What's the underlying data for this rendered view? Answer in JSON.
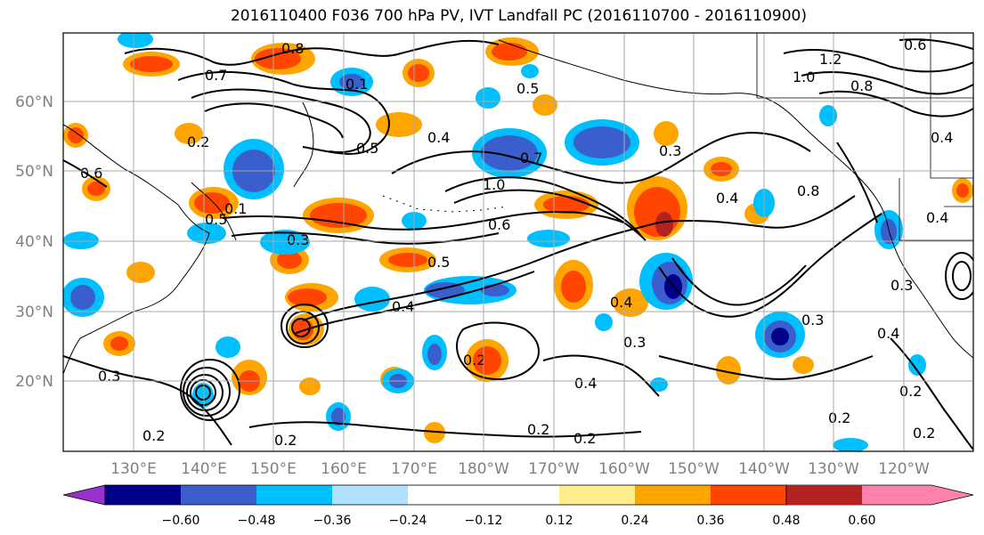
{
  "title": "2016110400 F036 700 hPa PV, IVT Landfall PC (2016110700 - 2016110900)",
  "map": {
    "projection": "equirectangular",
    "lon_range": [
      120,
      245
    ],
    "lat_range": [
      10,
      70
    ],
    "lat_ticks": [
      "20°N",
      "30°N",
      "40°N",
      "50°N",
      "60°N"
    ],
    "lon_ticks": [
      "130°E",
      "140°E",
      "150°E",
      "160°E",
      "170°E",
      "180°W",
      "170°W",
      "160°W",
      "150°W",
      "140°W",
      "130°W",
      "120°W"
    ],
    "grid": true,
    "contour_variable": "700 hPa PV",
    "contour_labels": [
      "0.8",
      "0.7",
      "0.6",
      "0.5",
      "0.4",
      "0.3",
      "0.2",
      "1.0",
      "1.2",
      "0.1"
    ],
    "fill_variable": "IVT Landfall PC"
  },
  "colorbar": {
    "ticks": [
      "−0.60",
      "−0.48",
      "−0.36",
      "−0.24",
      "−0.12",
      "0.12",
      "0.24",
      "0.36",
      "0.48",
      "0.60"
    ],
    "colors": [
      "#9932cc",
      "#00008b",
      "#3a5fcd",
      "#00bfff",
      "#b0e2ff",
      "#ffffff",
      "#ffec8b",
      "#ffa500",
      "#ff4500",
      "#b22222",
      "#ff82ab"
    ],
    "extend": "both"
  }
}
